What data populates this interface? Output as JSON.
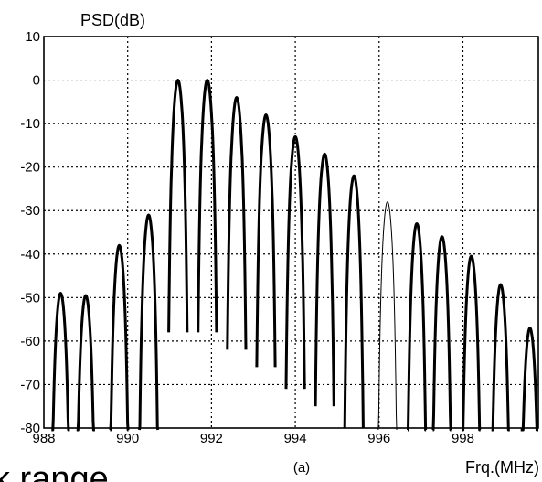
{
  "chart_data": {
    "type": "line",
    "title": "",
    "ylabel": "PSD(dB)",
    "xlabel": "Frq.(MHz)",
    "caption": "(a)",
    "clipped_text": "k range",
    "xlim": [
      988,
      999.8
    ],
    "ylim": [
      -80,
      10
    ],
    "xticks": [
      988,
      990,
      992,
      994,
      996,
      998
    ],
    "yticks": [
      10,
      0,
      -10,
      -20,
      -30,
      -40,
      -50,
      -60,
      -70,
      -80
    ],
    "grid": true,
    "grid_style": "dotted",
    "series": [
      {
        "style": "bold",
        "color": "#000000",
        "peaks": [
          {
            "x": 988.4,
            "y": -49
          },
          {
            "x": 989.0,
            "y": -49.5
          },
          {
            "x": 989.8,
            "y": -38
          },
          {
            "x": 990.5,
            "y": -31
          },
          {
            "x": 991.2,
            "y": 0
          },
          {
            "x": 991.9,
            "y": 0
          },
          {
            "x": 992.6,
            "y": -4
          },
          {
            "x": 993.3,
            "y": -8
          },
          {
            "x": 994.0,
            "y": -13
          },
          {
            "x": 994.7,
            "y": -17
          },
          {
            "x": 995.4,
            "y": -22
          },
          {
            "x": 996.9,
            "y": -33
          },
          {
            "x": 997.5,
            "y": -36
          },
          {
            "x": 998.2,
            "y": -40.5
          },
          {
            "x": 998.9,
            "y": -47
          },
          {
            "x": 999.6,
            "y": -57
          }
        ]
      },
      {
        "style": "thin",
        "color": "#000000",
        "peaks": [
          {
            "x": 996.2,
            "y": -28
          }
        ]
      }
    ]
  }
}
